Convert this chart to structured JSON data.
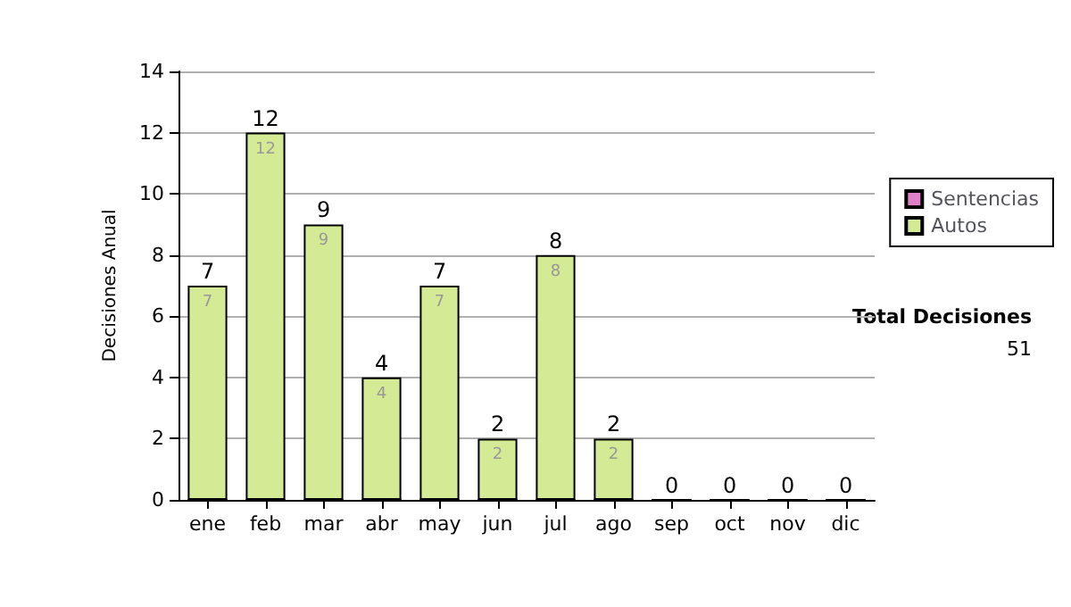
{
  "chart_data": {
    "type": "bar",
    "stacked": true,
    "ylabel": "Decisiones Anual",
    "categories": [
      "ene",
      "feb",
      "mar",
      "abr",
      "may",
      "jun",
      "jul",
      "ago",
      "sep",
      "oct",
      "nov",
      "dic"
    ],
    "series": [
      {
        "name": "Sentencias",
        "color": "#e080c8",
        "values": [
          0,
          0,
          0,
          0,
          0,
          0,
          0,
          0,
          0,
          0,
          0,
          0
        ]
      },
      {
        "name": "Autos",
        "color": "#d4ea94",
        "values": [
          7,
          12,
          9,
          4,
          7,
          2,
          8,
          2,
          0,
          0,
          0,
          0
        ],
        "value_labels": [
          "7",
          "12",
          "9",
          "4",
          "7",
          "2",
          "8",
          "2",
          null,
          null,
          null,
          null
        ]
      }
    ],
    "totals": [
      "7",
      "12",
      "9",
      "4",
      "7",
      "2",
      "8",
      "2",
      "0",
      "0",
      "0",
      "0"
    ],
    "ylim": [
      0,
      14
    ],
    "yticks": [
      0,
      2,
      4,
      6,
      8,
      10,
      12,
      14
    ],
    "grid": "y",
    "legend": "right",
    "annotations": [
      "Total Decisiones",
      "51"
    ]
  }
}
